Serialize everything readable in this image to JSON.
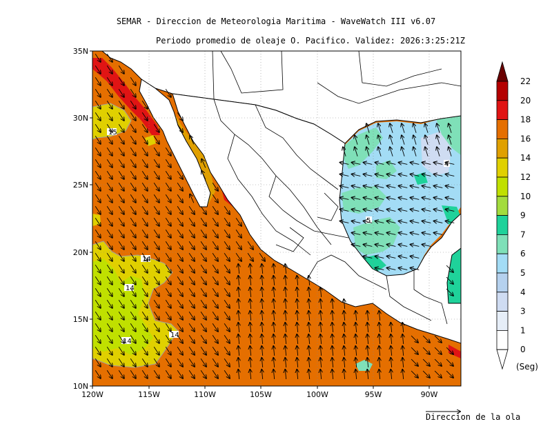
{
  "header": {
    "title": "SEMAR - Direccion de Meteorologia Maritima - WaveWatch III v6.07",
    "subtitle": "Periodo promedio de oleaje O. Pacifico. Validez: 2026:3:25:21Z"
  },
  "axes": {
    "lon_ticks": [
      "120W",
      "115W",
      "110W",
      "105W",
      "100W",
      "95W",
      "90W"
    ],
    "lat_ticks": [
      "35N",
      "30N",
      "25N",
      "20N",
      "15N",
      "10N"
    ]
  },
  "colorbar": {
    "unit": "(Seg)",
    "levels": [
      "0",
      "1",
      "3",
      "4",
      "5",
      "6",
      "7",
      "9",
      "10",
      "12",
      "14",
      "16",
      "18",
      "20",
      "22"
    ],
    "colors": [
      "#ffffff",
      "#e6eef8",
      "#cfdcf2",
      "#b5d1ee",
      "#a3dcf5",
      "#7fe0b8",
      "#1fd29a",
      "#a3dc3e",
      "#c0e000",
      "#e0d000",
      "#e0a000",
      "#e56f00",
      "#e01414",
      "#b40000",
      "#6a0000"
    ]
  },
  "contour_labels": [
    "15",
    "14",
    "14",
    "14",
    "14",
    "5",
    "4"
  ],
  "legend": {
    "direction_label": "Direccion de la ola"
  }
}
